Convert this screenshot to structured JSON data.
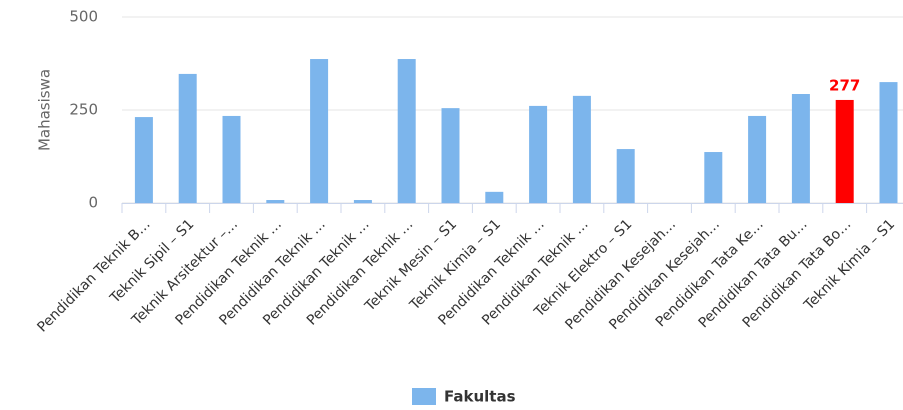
{
  "chart_data": {
    "type": "bar",
    "y_axis_title": "Mahasiswa",
    "categories": [
      "Pendidikan Teknik B…",
      "Teknik Sipil – S1",
      "Teknik Arsitektur –…",
      "Pendidikan Teknik …",
      "Pendidikan Teknik …",
      "Pendidikan Teknik …",
      "Pendidikan Teknik …",
      "Teknik Mesin – S1",
      "Teknik Kimia – S1",
      "Pendidikan Teknik …",
      "Pendidikan Teknik …",
      "Teknik Elektro – S1",
      "Pendidikan Kesejah…",
      "Pendidikan Kesejah…",
      "Pendidikan Tata Ke…",
      "Pendidikan Tata Bu…",
      "Pendidikan Tata Bo…",
      "Teknik Kimia – S1"
    ],
    "series": [
      {
        "name": "Fakultas",
        "color": "#7cb5ec",
        "values": [
          231,
          347,
          234,
          8,
          387,
          8,
          387,
          255,
          30,
          261,
          288,
          145,
          0,
          137,
          234,
          293,
          277,
          325
        ],
        "point_colors": [
          "#7cb5ec",
          "#7cb5ec",
          "#7cb5ec",
          "#7cb5ec",
          "#7cb5ec",
          "#7cb5ec",
          "#7cb5ec",
          "#7cb5ec",
          "#7cb5ec",
          "#7cb5ec",
          "#7cb5ec",
          "#7cb5ec",
          "#7cb5ec",
          "#7cb5ec",
          "#7cb5ec",
          "#7cb5ec",
          "#ff0000",
          "#7cb5ec"
        ],
        "labeled_points": [
          16
        ]
      }
    ],
    "ylim": [
      0,
      500
    ],
    "yticks": [
      0,
      250,
      500
    ],
    "grid": true
  }
}
